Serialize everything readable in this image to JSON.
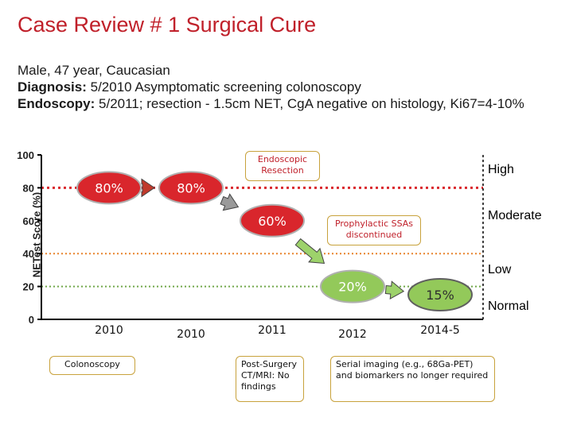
{
  "title": "Case Review # 1 Surgical Cure",
  "patient": {
    "line1": "Male, 47 year, Caucasian",
    "dx_label": "Diagnosis:",
    "dx_text": " 5/2010 Asymptomatic screening colonoscopy",
    "endo_label": "Endoscopy:",
    "endo_text": " 5/2011; resection - 1.5cm NET, CgA negative on histology, Ki67=4-10%"
  },
  "chart_data": {
    "type": "line",
    "ylabel": "NETest Score (%)",
    "ylim": [
      0,
      100
    ],
    "yticks": [
      "0",
      "20",
      "40",
      "60",
      "80",
      "100"
    ],
    "x": [
      "2010",
      "2010",
      "2011",
      "2012",
      "2014-5"
    ],
    "values": [
      80,
      80,
      60,
      20,
      15
    ],
    "data_labels": [
      "80%",
      "80%",
      "60%",
      "20%",
      "15%"
    ],
    "thresholds": [
      {
        "value": 80,
        "color": "#d9262c"
      },
      {
        "value": 40,
        "color": "#e8842c"
      },
      {
        "value": 20,
        "color": "#70a84a"
      }
    ],
    "zones": [
      {
        "label": "High",
        "color": "#d9262c"
      },
      {
        "label": "Moderate",
        "color": "#e8842c"
      },
      {
        "label": "Low",
        "color": "#4e9a36"
      },
      {
        "label": "Normal",
        "color": "#1f4fa0"
      }
    ],
    "annotations": [
      "Endoscopic Resection",
      "Prophylactic SSAs discontinued"
    ]
  },
  "events": [
    {
      "label": "Colonoscopy"
    },
    {
      "label": "Post-Surgery CT/MRI: No findings"
    },
    {
      "label": "Serial imaging (e.g., 68Ga-PET) and biomarkers no longer required"
    }
  ]
}
